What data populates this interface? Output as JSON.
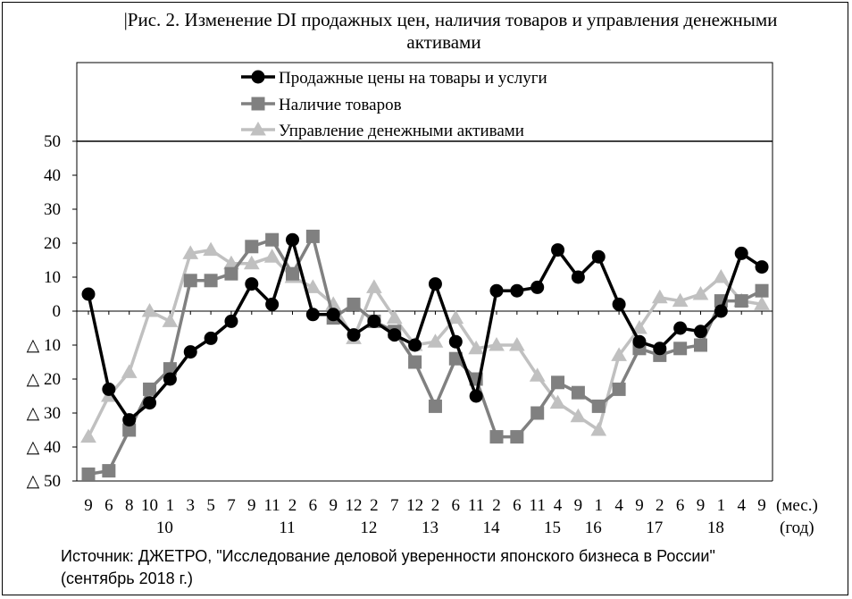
{
  "source": {
    "line1": "Источник: ДЖЕТРО, \"Исследование деловой уверенности японского бизнеса в России\"",
    "line2": "(сентябрь 2018 г.)"
  },
  "chart_data": {
    "type": "line",
    "title_line1": "|Рис. 2. Изменение DI продажных цен, наличия товаров и управления денежными",
    "title_line2": "активами",
    "x_month_labels": [
      "9",
      "6",
      "8",
      "10",
      "1",
      "3",
      "5",
      "7",
      "9",
      "11",
      "2",
      "6",
      "9",
      "12",
      "2",
      "7",
      "12",
      "2",
      "6",
      "11",
      "2",
      "6",
      "11",
      "4",
      "9",
      "1",
      "4",
      "9",
      "2",
      "6",
      "9",
      "1",
      "4",
      "9"
    ],
    "x_year_labels": [
      {
        "label": "10",
        "index": 4
      },
      {
        "label": "11",
        "index": 10
      },
      {
        "label": "12",
        "index": 14
      },
      {
        "label": "13",
        "index": 17
      },
      {
        "label": "14",
        "index": 20
      },
      {
        "label": "15",
        "index": 23
      },
      {
        "label": "16",
        "index": 25
      },
      {
        "label": "17",
        "index": 28
      },
      {
        "label": "18",
        "index": 31
      }
    ],
    "x_unit_month": "(мес.)",
    "x_unit_year": "(год)",
    "y_ticks": [
      {
        "value": 50,
        "label": "50"
      },
      {
        "value": 40,
        "label": "40"
      },
      {
        "value": 30,
        "label": "30"
      },
      {
        "value": 20,
        "label": "20"
      },
      {
        "value": 10,
        "label": "10"
      },
      {
        "value": 0,
        "label": "0"
      },
      {
        "value": -10,
        "label": "△ 10"
      },
      {
        "value": -20,
        "label": "△ 20"
      },
      {
        "value": -30,
        "label": "△ 30"
      },
      {
        "value": -40,
        "label": "△ 40"
      },
      {
        "value": -50,
        "label": "△ 50"
      }
    ],
    "ylim": [
      -50,
      50
    ],
    "legend_position": "top",
    "series": [
      {
        "name": "Продажные цены на товары и услуги",
        "color": "#000000",
        "marker": "circle",
        "values": [
          5,
          -23,
          -32,
          -27,
          -20,
          -12,
          -8,
          -3,
          8,
          2,
          21,
          -1,
          -1,
          -7,
          -3,
          -7,
          -10,
          8,
          -9,
          -25,
          6,
          6,
          7,
          18,
          10,
          16,
          2,
          -9,
          -11,
          -5,
          -6,
          0,
          17,
          13
        ]
      },
      {
        "name": "Наличие товаров",
        "color": "#808080",
        "marker": "square",
        "values": [
          -48,
          -47,
          -35,
          -23,
          -17,
          9,
          9,
          11,
          19,
          21,
          11,
          22,
          -2,
          2,
          -3,
          -6,
          -15,
          -28,
          -14,
          -20,
          -37,
          -37,
          -30,
          -21,
          -24,
          -28,
          -23,
          -11,
          -13,
          -11,
          -10,
          3,
          3,
          6
        ]
      },
      {
        "name": "Управление денежными активами",
        "color": "#c0c0c0",
        "marker": "triangle",
        "values": [
          -37,
          -25,
          -18,
          0,
          -3,
          17,
          18,
          14,
          14,
          16,
          10,
          7,
          2,
          -8,
          7,
          -2,
          -10,
          -9,
          -2,
          -11,
          -10,
          -10,
          -19,
          -27,
          -31,
          -35,
          -13,
          -5,
          4,
          3,
          5,
          10,
          3,
          2
        ]
      }
    ]
  }
}
